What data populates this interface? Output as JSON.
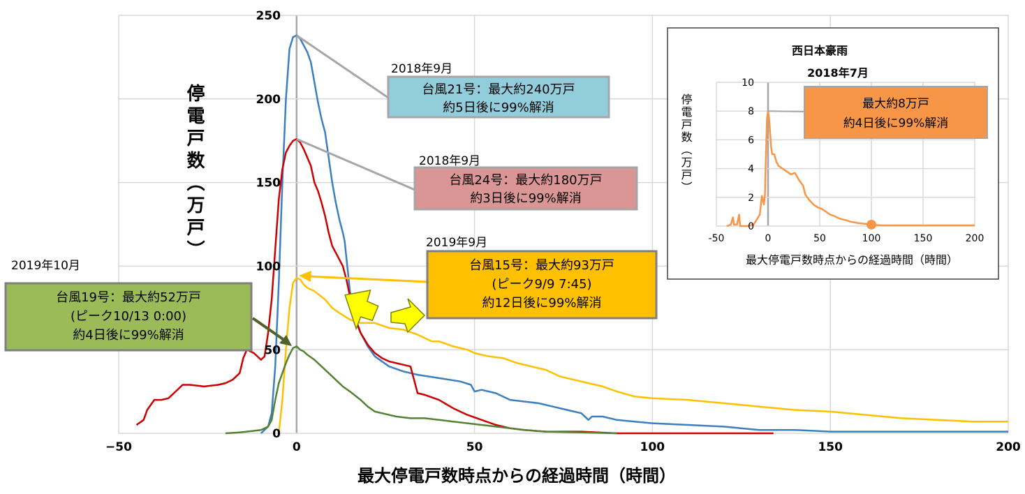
{
  "chart_data": [
    {
      "type": "line",
      "xlabel": "最大停電戸数時点からの経過時間（時間）",
      "ylabel": "停電戸数（万戸）",
      "xlim": [
        -50,
        200
      ],
      "ylim": [
        0,
        250
      ],
      "x_ticks": [
        "−50",
        "0",
        "50",
        "100",
        "150",
        "200"
      ],
      "y_ticks": [
        "0",
        "50",
        "100",
        "150",
        "200",
        "250"
      ],
      "grid": true,
      "series": [
        {
          "key": "t21",
          "color": "#3c7fc1",
          "points": [
            [
              -10,
              0
            ],
            [
              -8,
              4
            ],
            [
              -7,
              12
            ],
            [
              -6,
              40
            ],
            [
              -5,
              90
            ],
            [
              -4,
              150
            ],
            [
              -3,
              200
            ],
            [
              -2,
              230
            ],
            [
              -1,
              237
            ],
            [
              0,
              238
            ],
            [
              1,
              236
            ],
            [
              2,
              232
            ],
            [
              3,
              228
            ],
            [
              4,
              222
            ],
            [
              5,
              210
            ],
            [
              6,
              198
            ],
            [
              7,
              188
            ],
            [
              8,
              180
            ],
            [
              9,
              165
            ],
            [
              10,
              150
            ],
            [
              11,
              138
            ],
            [
              12,
              128
            ],
            [
              13,
              120
            ],
            [
              13.5,
              115
            ],
            [
              14,
              105
            ],
            [
              15,
              85
            ],
            [
              16,
              70
            ],
            [
              18,
              60
            ],
            [
              20,
              52
            ],
            [
              22,
              46
            ],
            [
              26,
              40
            ],
            [
              30,
              37
            ],
            [
              34,
              35
            ],
            [
              40,
              33
            ],
            [
              46,
              31
            ],
            [
              49,
              29
            ],
            [
              50,
              25
            ],
            [
              52,
              26
            ],
            [
              56,
              24
            ],
            [
              60,
              20
            ],
            [
              64,
              19
            ],
            [
              68,
              18
            ],
            [
              72,
              16
            ],
            [
              76,
              14
            ],
            [
              78,
              13
            ],
            [
              80,
              12
            ],
            [
              82,
              8
            ],
            [
              83,
              10
            ],
            [
              86,
              10
            ],
            [
              90,
              8
            ],
            [
              95,
              7
            ],
            [
              100,
              6
            ],
            [
              110,
              5
            ],
            [
              120,
              4
            ],
            [
              130,
              2
            ],
            [
              140,
              2
            ],
            [
              150,
              1
            ],
            [
              160,
              1
            ],
            [
              180,
              1
            ],
            [
              200,
              1
            ]
          ]
        },
        {
          "key": "t24",
          "color": "#cc0000",
          "points": [
            [
              -45,
              5
            ],
            [
              -43,
              8
            ],
            [
              -42,
              14
            ],
            [
              -40,
              20
            ],
            [
              -38,
              20
            ],
            [
              -36,
              21
            ],
            [
              -34,
              25
            ],
            [
              -32,
              29
            ],
            [
              -30,
              29
            ],
            [
              -26,
              28
            ],
            [
              -22,
              29
            ],
            [
              -20,
              30
            ],
            [
              -18,
              32
            ],
            [
              -16,
              36
            ],
            [
              -15,
              45
            ],
            [
              -14,
              50
            ],
            [
              -12,
              48
            ],
            [
              -10,
              44
            ],
            [
              -9,
              46
            ],
            [
              -8,
              60
            ],
            [
              -7,
              80
            ],
            [
              -6,
              110
            ],
            [
              -5,
              140
            ],
            [
              -4,
              158
            ],
            [
              -3,
              168
            ],
            [
              -2,
              172
            ],
            [
              -1,
              175
            ],
            [
              0,
              176
            ],
            [
              1,
              174
            ],
            [
              2,
              170
            ],
            [
              4,
              160
            ],
            [
              5,
              150
            ],
            [
              6,
              145
            ],
            [
              7,
              138
            ],
            [
              8,
              130
            ],
            [
              9,
              120
            ],
            [
              10,
              112
            ],
            [
              11,
              108
            ],
            [
              12,
              104
            ],
            [
              13,
              100
            ],
            [
              14,
              92
            ],
            [
              15,
              82
            ],
            [
              16,
              72
            ],
            [
              17,
              66
            ],
            [
              18,
              60
            ],
            [
              20,
              53
            ],
            [
              22,
              48
            ],
            [
              24,
              45
            ],
            [
              26,
              43
            ],
            [
              30,
              41
            ],
            [
              32,
              40
            ],
            [
              33,
              32
            ],
            [
              34,
              24
            ],
            [
              36,
              23
            ],
            [
              40,
              20
            ],
            [
              44,
              15
            ],
            [
              48,
              11
            ],
            [
              52,
              8
            ],
            [
              56,
              5
            ],
            [
              60,
              3
            ],
            [
              64,
              2
            ],
            [
              70,
              1
            ],
            [
              80,
              1
            ],
            [
              90,
              0
            ],
            [
              110,
              0
            ],
            [
              134,
              0
            ]
          ]
        },
        {
          "key": "t15",
          "color": "#ffc000",
          "points": [
            [
              -5,
              0
            ],
            [
              -4,
              20
            ],
            [
              -3,
              50
            ],
            [
              -2,
              75
            ],
            [
              -1,
              90
            ],
            [
              0,
              93
            ],
            [
              1,
              92
            ],
            [
              2,
              89
            ],
            [
              3,
              87
            ],
            [
              5,
              85
            ],
            [
              8,
              80
            ],
            [
              10,
              75
            ],
            [
              12,
              72
            ],
            [
              15,
              68
            ],
            [
              18,
              66
            ],
            [
              22,
              66
            ],
            [
              26,
              63
            ],
            [
              30,
              62
            ],
            [
              34,
              59
            ],
            [
              38,
              55
            ],
            [
              40,
              55
            ],
            [
              44,
              52
            ],
            [
              48,
              50
            ],
            [
              50,
              48
            ],
            [
              54,
              46
            ],
            [
              58,
              45
            ],
            [
              62,
              42
            ],
            [
              66,
              40
            ],
            [
              70,
              38
            ],
            [
              74,
              34
            ],
            [
              78,
              32
            ],
            [
              82,
              30
            ],
            [
              86,
              28
            ],
            [
              90,
              25
            ],
            [
              95,
              22
            ],
            [
              100,
              21
            ],
            [
              110,
              20
            ],
            [
              120,
              18
            ],
            [
              130,
              16
            ],
            [
              140,
              14
            ],
            [
              150,
              13
            ],
            [
              160,
              11
            ],
            [
              170,
              9
            ],
            [
              180,
              8
            ],
            [
              190,
              7
            ],
            [
              200,
              7
            ]
          ]
        },
        {
          "key": "t19",
          "color": "#548235",
          "points": [
            [
              -20,
              0
            ],
            [
              -16,
              0.5
            ],
            [
              -14,
              1
            ],
            [
              -10,
              2
            ],
            [
              -8,
              4
            ],
            [
              -7,
              8
            ],
            [
              -6,
              20
            ],
            [
              -5,
              30
            ],
            [
              -4,
              36
            ],
            [
              -3,
              42
            ],
            [
              -2,
              47
            ],
            [
              -1,
              51
            ],
            [
              0,
              52
            ],
            [
              1,
              50
            ],
            [
              2,
              49
            ],
            [
              3,
              47
            ],
            [
              5,
              44
            ],
            [
              7,
              40
            ],
            [
              9,
              36
            ],
            [
              11,
              32
            ],
            [
              13,
              28
            ],
            [
              15,
              25
            ],
            [
              18,
              20
            ],
            [
              20,
              16
            ],
            [
              22,
              13
            ],
            [
              24,
              12
            ],
            [
              28,
              10
            ],
            [
              32,
              9
            ],
            [
              36,
              9
            ],
            [
              40,
              8
            ],
            [
              44,
              7
            ],
            [
              48,
              6
            ],
            [
              52,
              5
            ],
            [
              56,
              4
            ],
            [
              60,
              3
            ],
            [
              64,
              2
            ],
            [
              70,
              1
            ],
            [
              80,
              0.5
            ],
            [
              90,
              0
            ]
          ]
        }
      ]
    },
    {
      "type": "line",
      "title": "西日本豪雨",
      "subtitle": "2018年7月",
      "xlabel": "最大停電戸数時点からの経過時間（時間）",
      "ylabel": "停電戸数（万戸）",
      "xlim": [
        -50,
        200
      ],
      "ylim": [
        0,
        10
      ],
      "x_ticks": [
        "-50",
        "0",
        "50",
        "100",
        "150",
        "200"
      ],
      "y_ticks": [
        "0",
        "2",
        "4",
        "6",
        "8",
        "10"
      ],
      "grid": true,
      "series": [
        {
          "key": "nishi",
          "color": "#f79646",
          "points": [
            [
              -40,
              0
            ],
            [
              -36,
              0.1
            ],
            [
              -34,
              0.6
            ],
            [
              -33,
              0.1
            ],
            [
              -30,
              0.1
            ],
            [
              -28,
              0.8
            ],
            [
              -27,
              0
            ],
            [
              -20,
              0
            ],
            [
              -14,
              0.1
            ],
            [
              -8,
              0.8
            ],
            [
              -6,
              2.1
            ],
            [
              -4,
              1.5
            ],
            [
              -3,
              2.2
            ],
            [
              -2,
              5
            ],
            [
              -1,
              7.5
            ],
            [
              0,
              8
            ],
            [
              1,
              7.5
            ],
            [
              2,
              6.5
            ],
            [
              3,
              5.5
            ],
            [
              4,
              5
            ],
            [
              6,
              5
            ],
            [
              8,
              4.5
            ],
            [
              10,
              4.2
            ],
            [
              14,
              4
            ],
            [
              18,
              3.8
            ],
            [
              22,
              3.6
            ],
            [
              26,
              3.7
            ],
            [
              30,
              3.2
            ],
            [
              34,
              2.8
            ],
            [
              36,
              2.2
            ],
            [
              38,
              2
            ],
            [
              40,
              1.8
            ],
            [
              44,
              1.5
            ],
            [
              48,
              1.3
            ],
            [
              52,
              1.2
            ],
            [
              56,
              1
            ],
            [
              60,
              0.8
            ],
            [
              64,
              0.7
            ],
            [
              70,
              0.5
            ],
            [
              76,
              0.4
            ],
            [
              80,
              0.3
            ],
            [
              88,
              0.2
            ],
            [
              95,
              0.15
            ],
            [
              100,
              0.1
            ],
            [
              110,
              0.05
            ],
            [
              200,
              0.05
            ]
          ]
        }
      ],
      "marker": {
        "x": 100,
        "y": 0.1,
        "color": "#f79646"
      }
    }
  ],
  "annotations": {
    "t21": {
      "date": "2018年9月",
      "line1": "台風21号：最大約240万戸",
      "line2": "約5日後に99%解消",
      "bg": "#92cddc"
    },
    "t24": {
      "date": "2018年9月",
      "line1": "台風24号：最大約180万戸",
      "line2": "約3日後に99%解消",
      "bg": "#da9694"
    },
    "t15": {
      "date": "2019年9月",
      "line1": "台風15号：最大約93万戸",
      "line2": "(ピーク9/9 7:45)",
      "line3": "約12日後に99%解消",
      "bg": "#ffc000"
    },
    "t19": {
      "date": "2019年10月",
      "line1": "台風19号：最大約52万戸",
      "line2": "(ピーク10/13 0:00)",
      "line3": "約4日後に99%解消",
      "bg": "#9bbb59"
    },
    "nishi": {
      "line1": "最大約8万戸",
      "line2": "約4日後に99%解消",
      "bg": "#f79646"
    }
  }
}
